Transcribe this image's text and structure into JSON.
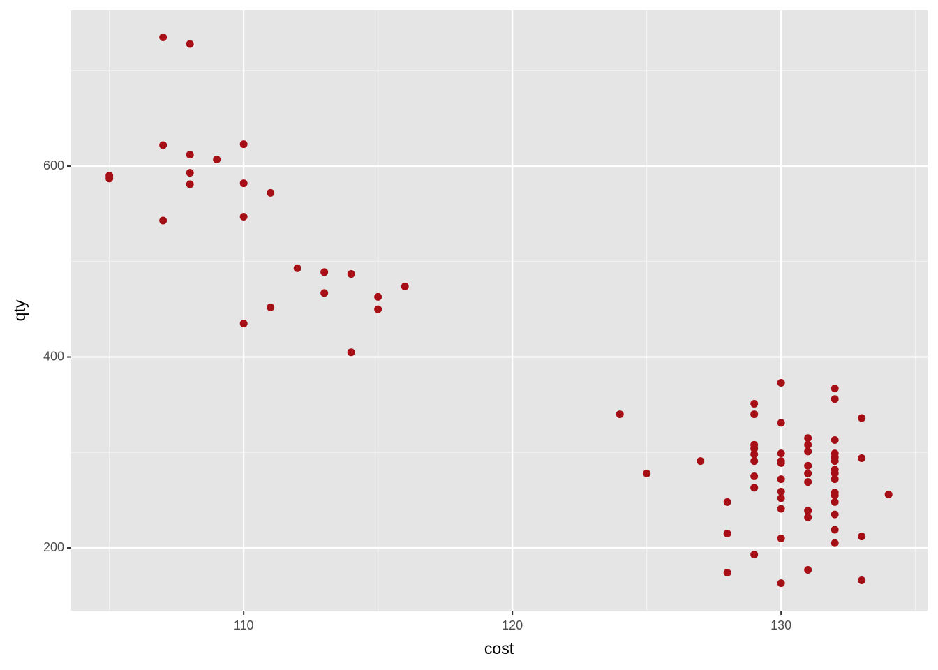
{
  "chart_data": {
    "type": "scatter",
    "x_label": "cost",
    "y_label": "qty",
    "color": "#a50f15",
    "grid": true,
    "xlim": [
      103.58,
      135.45
    ],
    "ylim": [
      134.2,
      763.1
    ],
    "xticks": [
      110,
      120,
      130
    ],
    "yticks": [
      200,
      400,
      600
    ],
    "x_minor_ticks": [
      105,
      115,
      125,
      135
    ],
    "y_minor_ticks": [
      300,
      500,
      700
    ],
    "x": [
      107,
      108,
      107,
      108,
      108,
      108,
      109,
      110,
      110,
      110,
      111,
      105,
      105,
      107,
      112,
      113,
      113,
      114,
      115,
      115,
      116,
      111,
      110,
      114,
      124,
      125,
      127,
      128,
      128,
      128,
      129,
      129,
      129,
      129,
      129,
      129,
      129,
      129,
      129,
      130,
      130,
      130,
      130,
      130,
      130,
      130,
      130,
      130,
      130,
      130,
      131,
      131,
      131,
      131,
      131,
      131,
      131,
      131,
      131,
      132,
      132,
      132,
      132,
      132,
      132,
      132,
      132,
      132,
      132,
      132,
      132,
      132,
      132,
      132,
      133,
      133,
      133,
      133,
      134
    ],
    "values": [
      735,
      728,
      622,
      612,
      593,
      581,
      607,
      623,
      582,
      547,
      572,
      590,
      587,
      543,
      493,
      489,
      467,
      487,
      463,
      450,
      474,
      452,
      435,
      405,
      340,
      278,
      291,
      248,
      215,
      174,
      351,
      340,
      308,
      304,
      298,
      291,
      275,
      263,
      193,
      373,
      331,
      299,
      291,
      289,
      272,
      259,
      252,
      241,
      210,
      163,
      315,
      308,
      301,
      286,
      278,
      269,
      239,
      232,
      177,
      367,
      356,
      313,
      299,
      295,
      291,
      282,
      278,
      272,
      258,
      255,
      248,
      235,
      219,
      205,
      336,
      294,
      212,
      166,
      256
    ]
  }
}
